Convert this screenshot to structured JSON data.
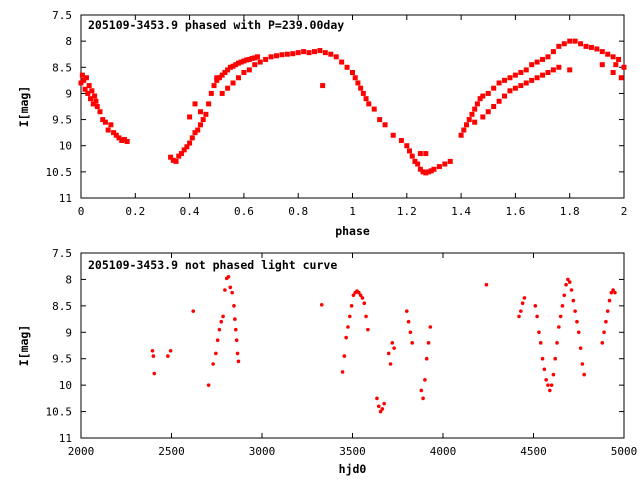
{
  "chart_data": [
    {
      "type": "scatter",
      "title": "205109-3453.9 phased with P=239.00day",
      "xlabel": "phase",
      "ylabel": "I[mag]",
      "xlim": [
        0,
        2
      ],
      "ylim": [
        7.5,
        11
      ],
      "y_inverted": true,
      "grid": false,
      "marker_color": "#ff0000",
      "xticks": [
        "0",
        "0.2",
        "0.4",
        "0.6",
        "0.8",
        "1",
        "1.2",
        "1.4",
        "1.6",
        "1.8",
        "2"
      ],
      "yticks": [
        "7.5",
        "8",
        "8.5",
        "9",
        "9.5",
        "10",
        "10.5",
        "11"
      ],
      "series": [
        {
          "points": [
            [
              0.0,
              8.8
            ],
            [
              0.005,
              8.65
            ],
            [
              0.01,
              8.75
            ],
            [
              0.015,
              8.92
            ],
            [
              0.02,
              8.7
            ],
            [
              0.025,
              9.0
            ],
            [
              0.03,
              8.85
            ],
            [
              0.035,
              9.1
            ],
            [
              0.04,
              8.95
            ],
            [
              0.045,
              9.2
            ],
            [
              0.05,
              9.05
            ],
            [
              0.055,
              9.15
            ],
            [
              0.06,
              9.25
            ],
            [
              0.07,
              9.35
            ],
            [
              0.08,
              9.5
            ],
            [
              0.09,
              9.55
            ],
            [
              0.1,
              9.7
            ],
            [
              0.11,
              9.6
            ],
            [
              0.12,
              9.75
            ],
            [
              0.13,
              9.8
            ],
            [
              0.14,
              9.85
            ],
            [
              0.15,
              9.9
            ],
            [
              0.16,
              9.88
            ],
            [
              0.17,
              9.92
            ],
            [
              0.33,
              10.22
            ],
            [
              0.34,
              10.28
            ],
            [
              0.35,
              10.3
            ],
            [
              0.36,
              10.2
            ],
            [
              0.37,
              10.15
            ],
            [
              0.38,
              10.08
            ],
            [
              0.39,
              10.02
            ],
            [
              0.4,
              9.95
            ],
            [
              0.41,
              9.85
            ],
            [
              0.42,
              9.75
            ],
            [
              0.43,
              9.7
            ],
            [
              0.44,
              9.6
            ],
            [
              0.45,
              9.5
            ],
            [
              0.46,
              9.4
            ],
            [
              0.4,
              9.45
            ],
            [
              0.42,
              9.2
            ],
            [
              0.44,
              9.35
            ],
            [
              0.47,
              9.2
            ],
            [
              0.48,
              9.0
            ],
            [
              0.49,
              8.85
            ],
            [
              0.5,
              8.75
            ],
            [
              0.51,
              8.7
            ],
            [
              0.52,
              8.65
            ],
            [
              0.53,
              8.6
            ],
            [
              0.54,
              8.55
            ],
            [
              0.55,
              8.5
            ],
            [
              0.56,
              8.48
            ],
            [
              0.57,
              8.45
            ],
            [
              0.58,
              8.42
            ],
            [
              0.59,
              8.4
            ],
            [
              0.6,
              8.38
            ],
            [
              0.61,
              8.36
            ],
            [
              0.62,
              8.35
            ],
            [
              0.63,
              8.33
            ],
            [
              0.64,
              8.32
            ],
            [
              0.65,
              8.3
            ],
            [
              0.5,
              8.7
            ],
            [
              0.52,
              9.0
            ],
            [
              0.54,
              8.9
            ],
            [
              0.56,
              8.8
            ],
            [
              0.58,
              8.7
            ],
            [
              0.6,
              8.6
            ],
            [
              0.62,
              8.55
            ],
            [
              0.64,
              8.45
            ],
            [
              0.66,
              8.4
            ],
            [
              0.68,
              8.35
            ],
            [
              0.7,
              8.3
            ],
            [
              0.72,
              8.28
            ],
            [
              0.74,
              8.26
            ],
            [
              0.76,
              8.25
            ],
            [
              0.78,
              8.24
            ],
            [
              0.8,
              8.22
            ],
            [
              0.82,
              8.2
            ],
            [
              0.84,
              8.22
            ],
            [
              0.86,
              8.2
            ],
            [
              0.88,
              8.18
            ],
            [
              0.89,
              8.85
            ],
            [
              0.9,
              8.22
            ],
            [
              0.92,
              8.25
            ],
            [
              0.94,
              8.3
            ],
            [
              0.96,
              8.4
            ],
            [
              0.98,
              8.5
            ],
            [
              1.0,
              8.6
            ],
            [
              1.01,
              8.7
            ],
            [
              1.02,
              8.8
            ],
            [
              1.03,
              8.9
            ],
            [
              1.04,
              9.0
            ],
            [
              1.05,
              9.1
            ],
            [
              1.06,
              9.2
            ],
            [
              1.08,
              9.3
            ],
            [
              1.1,
              9.5
            ],
            [
              1.12,
              9.6
            ],
            [
              1.15,
              9.8
            ],
            [
              1.18,
              9.9
            ],
            [
              1.2,
              10.0
            ],
            [
              1.21,
              10.1
            ],
            [
              1.22,
              10.2
            ],
            [
              1.23,
              10.3
            ],
            [
              1.24,
              10.35
            ],
            [
              1.25,
              10.45
            ],
            [
              1.26,
              10.5
            ],
            [
              1.27,
              10.52
            ],
            [
              1.28,
              10.5
            ],
            [
              1.29,
              10.48
            ],
            [
              1.3,
              10.45
            ],
            [
              1.32,
              10.4
            ],
            [
              1.34,
              10.35
            ],
            [
              1.36,
              10.3
            ],
            [
              1.25,
              10.15
            ],
            [
              1.27,
              10.15
            ],
            [
              1.4,
              9.8
            ],
            [
              1.41,
              9.7
            ],
            [
              1.42,
              9.6
            ],
            [
              1.43,
              9.5
            ],
            [
              1.44,
              9.4
            ],
            [
              1.45,
              9.3
            ],
            [
              1.46,
              9.2
            ],
            [
              1.47,
              9.1
            ],
            [
              1.48,
              9.05
            ],
            [
              1.5,
              9.0
            ],
            [
              1.52,
              8.9
            ],
            [
              1.54,
              8.8
            ],
            [
              1.56,
              8.75
            ],
            [
              1.58,
              8.7
            ],
            [
              1.6,
              8.65
            ],
            [
              1.62,
              8.6
            ],
            [
              1.64,
              8.55
            ],
            [
              1.66,
              8.45
            ],
            [
              1.68,
              8.4
            ],
            [
              1.7,
              8.35
            ],
            [
              1.72,
              8.3
            ],
            [
              1.74,
              8.2
            ],
            [
              1.76,
              8.1
            ],
            [
              1.78,
              8.05
            ],
            [
              1.8,
              8.0
            ],
            [
              1.82,
              8.0
            ],
            [
              1.84,
              8.05
            ],
            [
              1.86,
              8.1
            ],
            [
              1.88,
              8.12
            ],
            [
              1.9,
              8.15
            ],
            [
              1.92,
              8.2
            ],
            [
              1.94,
              8.25
            ],
            [
              1.96,
              8.3
            ],
            [
              1.98,
              8.35
            ],
            [
              2.0,
              8.5
            ],
            [
              1.45,
              9.55
            ],
            [
              1.48,
              9.45
            ],
            [
              1.5,
              9.35
            ],
            [
              1.52,
              9.25
            ],
            [
              1.54,
              9.15
            ],
            [
              1.56,
              9.05
            ],
            [
              1.58,
              8.95
            ],
            [
              1.6,
              8.9
            ],
            [
              1.62,
              8.85
            ],
            [
              1.64,
              8.8
            ],
            [
              1.66,
              8.75
            ],
            [
              1.68,
              8.7
            ],
            [
              1.7,
              8.65
            ],
            [
              1.72,
              8.6
            ],
            [
              1.74,
              8.55
            ],
            [
              1.76,
              8.5
            ],
            [
              1.8,
              8.55
            ],
            [
              1.92,
              8.45
            ],
            [
              1.96,
              8.6
            ],
            [
              1.99,
              8.7
            ],
            [
              1.97,
              8.45
            ]
          ]
        }
      ]
    },
    {
      "type": "scatter",
      "title": "205109-3453.9 not phased light curve",
      "xlabel": "hjd0",
      "ylabel": "I[mag]",
      "xlim": [
        2000,
        5000
      ],
      "ylim": [
        7.5,
        11
      ],
      "y_inverted": true,
      "grid": false,
      "marker_color": "#ff0000",
      "xticks": [
        "2000",
        "2500",
        "3000",
        "3500",
        "4000",
        "4500",
        "5000"
      ],
      "yticks": [
        "7.5",
        "8",
        "8.5",
        "9",
        "9.5",
        "10",
        "10.5",
        "11"
      ],
      "series": [
        {
          "points": [
            [
              2395,
              9.35
            ],
            [
              2400,
              9.45
            ],
            [
              2405,
              9.78
            ],
            [
              2480,
              9.45
            ],
            [
              2495,
              9.35
            ],
            [
              2620,
              8.6
            ],
            [
              2705,
              10.0
            ],
            [
              2730,
              9.6
            ],
            [
              2745,
              9.4
            ],
            [
              2755,
              9.15
            ],
            [
              2765,
              8.95
            ],
            [
              2775,
              8.8
            ],
            [
              2785,
              8.7
            ],
            [
              2795,
              8.2
            ],
            [
              2805,
              7.98
            ],
            [
              2815,
              7.95
            ],
            [
              2825,
              8.15
            ],
            [
              2835,
              8.25
            ],
            [
              2845,
              8.5
            ],
            [
              2850,
              8.75
            ],
            [
              2855,
              8.95
            ],
            [
              2860,
              9.15
            ],
            [
              2865,
              9.4
            ],
            [
              2870,
              9.55
            ],
            [
              3330,
              8.48
            ],
            [
              3445,
              9.75
            ],
            [
              3455,
              9.45
            ],
            [
              3465,
              9.1
            ],
            [
              3475,
              8.9
            ],
            [
              3485,
              8.7
            ],
            [
              3495,
              8.5
            ],
            [
              3505,
              8.3
            ],
            [
              3515,
              8.25
            ],
            [
              3525,
              8.22
            ],
            [
              3535,
              8.25
            ],
            [
              3545,
              8.3
            ],
            [
              3555,
              8.35
            ],
            [
              3565,
              8.45
            ],
            [
              3575,
              8.7
            ],
            [
              3585,
              8.95
            ],
            [
              3635,
              10.25
            ],
            [
              3645,
              10.4
            ],
            [
              3655,
              10.5
            ],
            [
              3665,
              10.45
            ],
            [
              3675,
              10.35
            ],
            [
              3700,
              9.4
            ],
            [
              3710,
              9.6
            ],
            [
              3720,
              9.2
            ],
            [
              3730,
              9.3
            ],
            [
              3800,
              8.6
            ],
            [
              3810,
              8.8
            ],
            [
              3820,
              9.0
            ],
            [
              3830,
              9.2
            ],
            [
              3880,
              10.1
            ],
            [
              3890,
              10.25
            ],
            [
              3900,
              9.9
            ],
            [
              3910,
              9.5
            ],
            [
              3920,
              9.2
            ],
            [
              3930,
              8.9
            ],
            [
              4240,
              8.1
            ],
            [
              4420,
              8.7
            ],
            [
              4430,
              8.6
            ],
            [
              4440,
              8.45
            ],
            [
              4450,
              8.35
            ],
            [
              4510,
              8.5
            ],
            [
              4520,
              8.7
            ],
            [
              4530,
              9.0
            ],
            [
              4540,
              9.2
            ],
            [
              4550,
              9.5
            ],
            [
              4560,
              9.7
            ],
            [
              4570,
              9.9
            ],
            [
              4580,
              10.0
            ],
            [
              4590,
              10.1
            ],
            [
              4600,
              10.0
            ],
            [
              4610,
              9.8
            ],
            [
              4620,
              9.5
            ],
            [
              4630,
              9.2
            ],
            [
              4640,
              8.9
            ],
            [
              4650,
              8.7
            ],
            [
              4660,
              8.5
            ],
            [
              4670,
              8.3
            ],
            [
              4680,
              8.1
            ],
            [
              4690,
              8.0
            ],
            [
              4700,
              8.05
            ],
            [
              4710,
              8.2
            ],
            [
              4720,
              8.4
            ],
            [
              4730,
              8.6
            ],
            [
              4740,
              8.8
            ],
            [
              4750,
              9.0
            ],
            [
              4760,
              9.3
            ],
            [
              4770,
              9.6
            ],
            [
              4780,
              9.8
            ],
            [
              4880,
              9.2
            ],
            [
              4890,
              9.0
            ],
            [
              4900,
              8.8
            ],
            [
              4910,
              8.6
            ],
            [
              4920,
              8.4
            ],
            [
              4930,
              8.25
            ],
            [
              4940,
              8.2
            ],
            [
              4950,
              8.25
            ]
          ]
        }
      ]
    }
  ]
}
